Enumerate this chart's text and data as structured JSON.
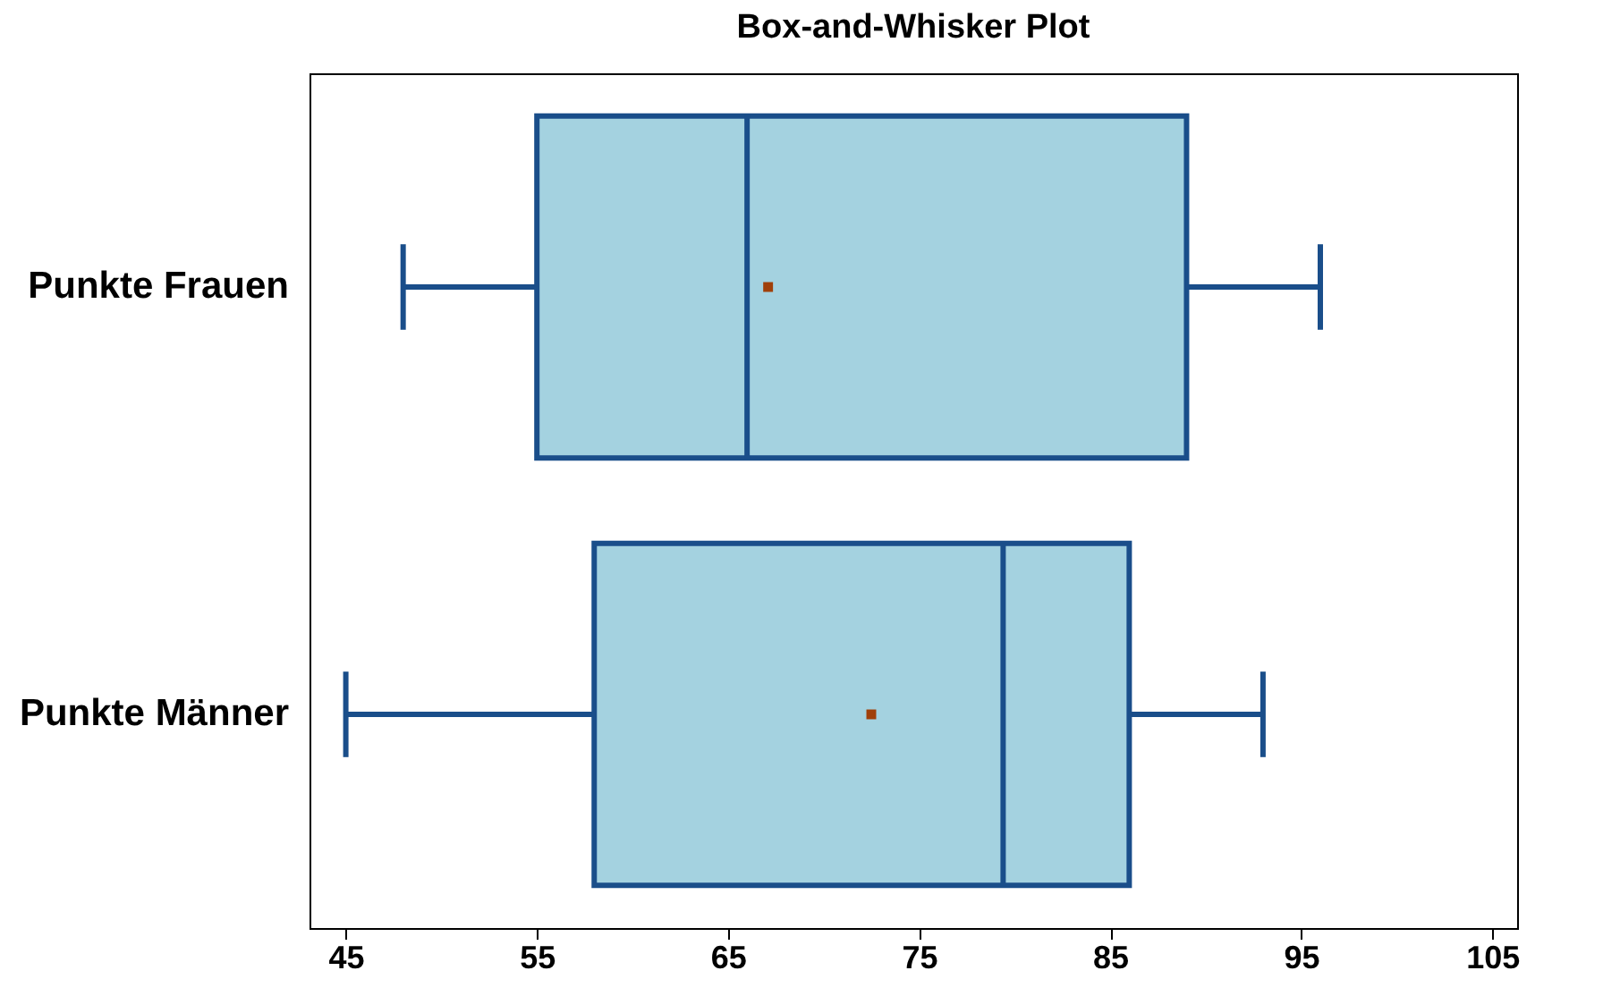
{
  "chart_data": {
    "type": "box",
    "title": "Box-and-Whisker Plot",
    "orientation": "horizontal",
    "categories": [
      "Punkte Frauen",
      "Punkte Männer"
    ],
    "boxes": [
      {
        "low": 48,
        "q1": 55,
        "median": 66,
        "q3": 89,
        "high": 96,
        "mean": 67.1
      },
      {
        "low": 45,
        "q1": 58,
        "median": 79.4,
        "q3": 86,
        "high": 93,
        "mean": 72.5
      }
    ],
    "color": "#a4d2e0",
    "xlim": [
      43.1,
      106.3
    ],
    "xticks": [
      45,
      55,
      65,
      75,
      85,
      95,
      105
    ],
    "grid": false,
    "marker": "square"
  }
}
